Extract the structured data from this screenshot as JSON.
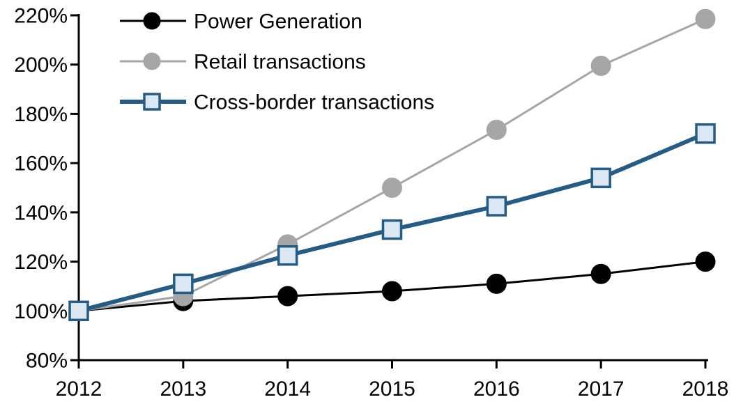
{
  "chart_data": {
    "type": "line",
    "title": "",
    "xlabel": "",
    "ylabel": "",
    "x": [
      2012,
      2013,
      2014,
      2015,
      2016,
      2017,
      2018
    ],
    "x_tick_labels": [
      "2012",
      "2013",
      "2014",
      "2015",
      "2016",
      "2017",
      "2018"
    ],
    "ylim": [
      80,
      220
    ],
    "ytick_step": 20,
    "y_tick_labels": [
      "80%",
      "100%",
      "120%",
      "140%",
      "160%",
      "180%",
      "200%",
      "220%"
    ],
    "grid": false,
    "legend_position": "top-left",
    "series": [
      {
        "name": "Power Generation",
        "color": "#000000",
        "marker": "circle",
        "marker_fill": "#000000",
        "marker_stroke": "#000000",
        "line_width": 3,
        "values": [
          100,
          104,
          106,
          108,
          111,
          115,
          120
        ]
      },
      {
        "name": "Retail transactions",
        "color": "#A6A6A6",
        "marker": "circle",
        "marker_fill": "#A6A6A6",
        "marker_stroke": "#A6A6A6",
        "line_width": 3,
        "values": [
          100,
          106,
          127,
          150,
          173.5,
          199.5,
          218.5
        ]
      },
      {
        "name": "Cross-border transactions",
        "color": "#255C85",
        "marker": "square",
        "marker_fill": "#DCE8F4",
        "marker_stroke": "#255C85",
        "line_width": 6,
        "values": [
          100,
          111,
          122.5,
          133,
          142.5,
          154,
          172
        ]
      }
    ]
  }
}
